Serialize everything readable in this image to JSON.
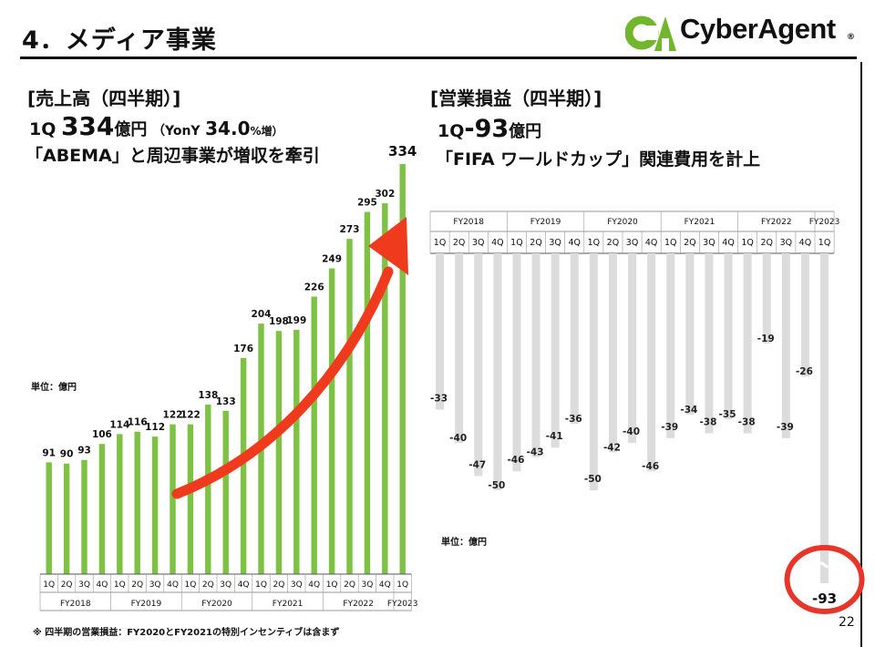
{
  "slide": {
    "title": "4．メディア事業",
    "page_number": "22",
    "footnote": "※ 四半期の営業損益：FY2020とFY2021の特別インセンティブは含まず"
  },
  "logo": {
    "text": "CyberAgent",
    "reg": "®",
    "mark_text": "CA",
    "mark_color": "#72B62D"
  },
  "revenue": {
    "heading": "[売上高（四半期）]",
    "q_label": "1Q",
    "value": "334",
    "unit": "億円",
    "yoy_label": "（YonY",
    "yoy_value": "34.0",
    "yoy_unit": "%増）",
    "subtitle": "「ABEMA」と周辺事業が増収を牽引",
    "unit_label": "単位：億円"
  },
  "operating": {
    "heading": "[営業損益（四半期）]",
    "q_label": "1Q",
    "value": "-93",
    "unit": "億円",
    "subtitle": "「FIFA ワールドカップ」関連費用を計上",
    "unit_label": "単位：億円"
  },
  "colors": {
    "revenue_bar": "#7DC242",
    "op_bar": "#DCDCDC",
    "arrow": "#F03A1E",
    "highlight_circle": "#E8352A"
  },
  "chart_data": [
    {
      "type": "bar",
      "title": "売上高（四半期）",
      "ylabel": "単位：億円",
      "categories": [
        "1Q",
        "2Q",
        "3Q",
        "4Q",
        "1Q",
        "2Q",
        "3Q",
        "4Q",
        "1Q",
        "2Q",
        "3Q",
        "4Q",
        "1Q",
        "2Q",
        "3Q",
        "4Q",
        "1Q",
        "2Q",
        "3Q",
        "4Q",
        "1Q"
      ],
      "fiscal_years": [
        {
          "label": "FY2018",
          "span": 4
        },
        {
          "label": "FY2019",
          "span": 4
        },
        {
          "label": "FY2020",
          "span": 4
        },
        {
          "label": "FY2021",
          "span": 4
        },
        {
          "label": "FY2022",
          "span": 4
        },
        {
          "label": "FY2023",
          "span": 1
        }
      ],
      "values": [
        91,
        90,
        93,
        106,
        114,
        116,
        112,
        122,
        122,
        138,
        133,
        176,
        204,
        198,
        199,
        226,
        249,
        273,
        295,
        302,
        334
      ],
      "ylim": [
        0,
        334
      ],
      "grid": false,
      "annotations": [
        "upward trend arrow"
      ]
    },
    {
      "type": "bar",
      "title": "営業損益（四半期）",
      "ylabel": "単位：億円",
      "categories": [
        "1Q",
        "2Q",
        "3Q",
        "4Q",
        "1Q",
        "2Q",
        "3Q",
        "4Q",
        "1Q",
        "2Q",
        "3Q",
        "4Q",
        "1Q",
        "2Q",
        "3Q",
        "4Q",
        "1Q",
        "2Q",
        "3Q",
        "4Q",
        "1Q"
      ],
      "fiscal_years": [
        {
          "label": "FY2018",
          "span": 4
        },
        {
          "label": "FY2019",
          "span": 4
        },
        {
          "label": "FY2020",
          "span": 4
        },
        {
          "label": "FY2021",
          "span": 4
        },
        {
          "label": "FY2022",
          "span": 4
        },
        {
          "label": "FY2023",
          "span": 1
        }
      ],
      "values": [
        -33,
        -40,
        -47,
        -50,
        -46,
        -43,
        -41,
        -36,
        -50,
        -42,
        -40,
        -46,
        -39,
        -34,
        -38,
        -35,
        -38,
        -19,
        -39,
        -26,
        -93
      ],
      "ylim": [
        -93,
        0
      ],
      "grid": false,
      "axis_break_last_bar": true,
      "annotations": [
        "latest quarter circled"
      ]
    }
  ]
}
